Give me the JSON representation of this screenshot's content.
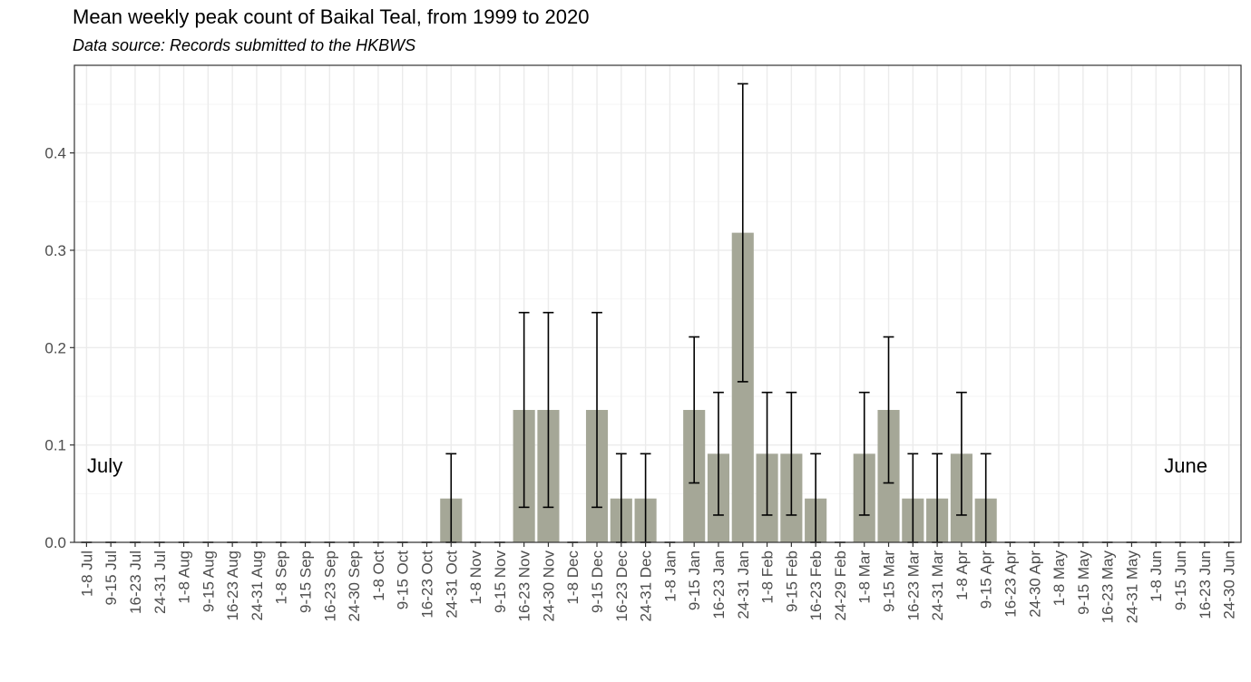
{
  "chart_data": {
    "type": "bar",
    "title": "Mean weekly peak count of Baikal Teal, from 1999 to 2020",
    "subtitle": "Data source: Records submitted to the HKBWS",
    "xlabel": "",
    "ylabel": "",
    "ylim": [
      0,
      0.49
    ],
    "yticks": [
      "0.0",
      "0.1",
      "0.2",
      "0.3",
      "0.4"
    ],
    "grid": true,
    "annotations": [
      "July",
      "June"
    ],
    "categories": [
      "1-8 Jul",
      "9-15 Jul",
      "16-23 Jul",
      "24-31 Jul",
      "1-8 Aug",
      "9-15 Aug",
      "16-23 Aug",
      "24-31 Aug",
      "1-8 Sep",
      "9-15 Sep",
      "16-23 Sep",
      "24-30 Sep",
      "1-8 Oct",
      "9-15 Oct",
      "16-23 Oct",
      "24-31 Oct",
      "1-8 Nov",
      "9-15 Nov",
      "16-23 Nov",
      "24-30 Nov",
      "1-8 Dec",
      "9-15 Dec",
      "16-23 Dec",
      "24-31 Dec",
      "1-8 Jan",
      "9-15 Jan",
      "16-23 Jan",
      "24-31 Jan",
      "1-8 Feb",
      "9-15 Feb",
      "16-23 Feb",
      "24-29 Feb",
      "1-8 Mar",
      "9-15 Mar",
      "16-23 Mar",
      "24-31 Mar",
      "1-8 Apr",
      "9-15 Apr",
      "16-23 Apr",
      "24-30 Apr",
      "1-8 May",
      "9-15 May",
      "16-23 May",
      "24-31 May",
      "1-8 Jun",
      "9-15 Jun",
      "16-23 Jun",
      "24-30 Jun"
    ],
    "values": [
      0,
      0,
      0,
      0,
      0,
      0,
      0,
      0,
      0,
      0,
      0,
      0,
      0,
      0,
      0,
      0.045,
      0,
      0,
      0.136,
      0.136,
      0,
      0.136,
      0.045,
      0.045,
      0,
      0.136,
      0.091,
      0.318,
      0.091,
      0.091,
      0.045,
      0,
      0.091,
      0.136,
      0.045,
      0.045,
      0.091,
      0.045,
      0,
      0,
      0,
      0,
      0,
      0,
      0,
      0,
      0,
      0
    ],
    "error_low": [
      0,
      0,
      0,
      0,
      0,
      0,
      0,
      0,
      0,
      0,
      0,
      0,
      0,
      0,
      0,
      0,
      0,
      0,
      0.036,
      0.036,
      0,
      0.036,
      0,
      0,
      0,
      0.061,
      0.028,
      0.165,
      0.028,
      0.028,
      0,
      0,
      0.028,
      0.061,
      0,
      0,
      0.028,
      0,
      0,
      0,
      0,
      0,
      0,
      0,
      0,
      0,
      0,
      0
    ],
    "error_high": [
      0,
      0,
      0,
      0,
      0,
      0,
      0,
      0,
      0,
      0,
      0,
      0,
      0,
      0,
      0,
      0.091,
      0,
      0,
      0.236,
      0.236,
      0,
      0.236,
      0.091,
      0.091,
      0,
      0.211,
      0.154,
      0.471,
      0.154,
      0.154,
      0.091,
      0,
      0.154,
      0.211,
      0.091,
      0.091,
      0.154,
      0.091,
      0,
      0,
      0,
      0,
      0,
      0,
      0,
      0,
      0,
      0
    ],
    "colors": {
      "bar": "#a5a797",
      "errorbar": "#000000",
      "grid_major": "#ebebeb",
      "grid_minor": "#f5f5f5",
      "panel_border": "#333333"
    }
  }
}
